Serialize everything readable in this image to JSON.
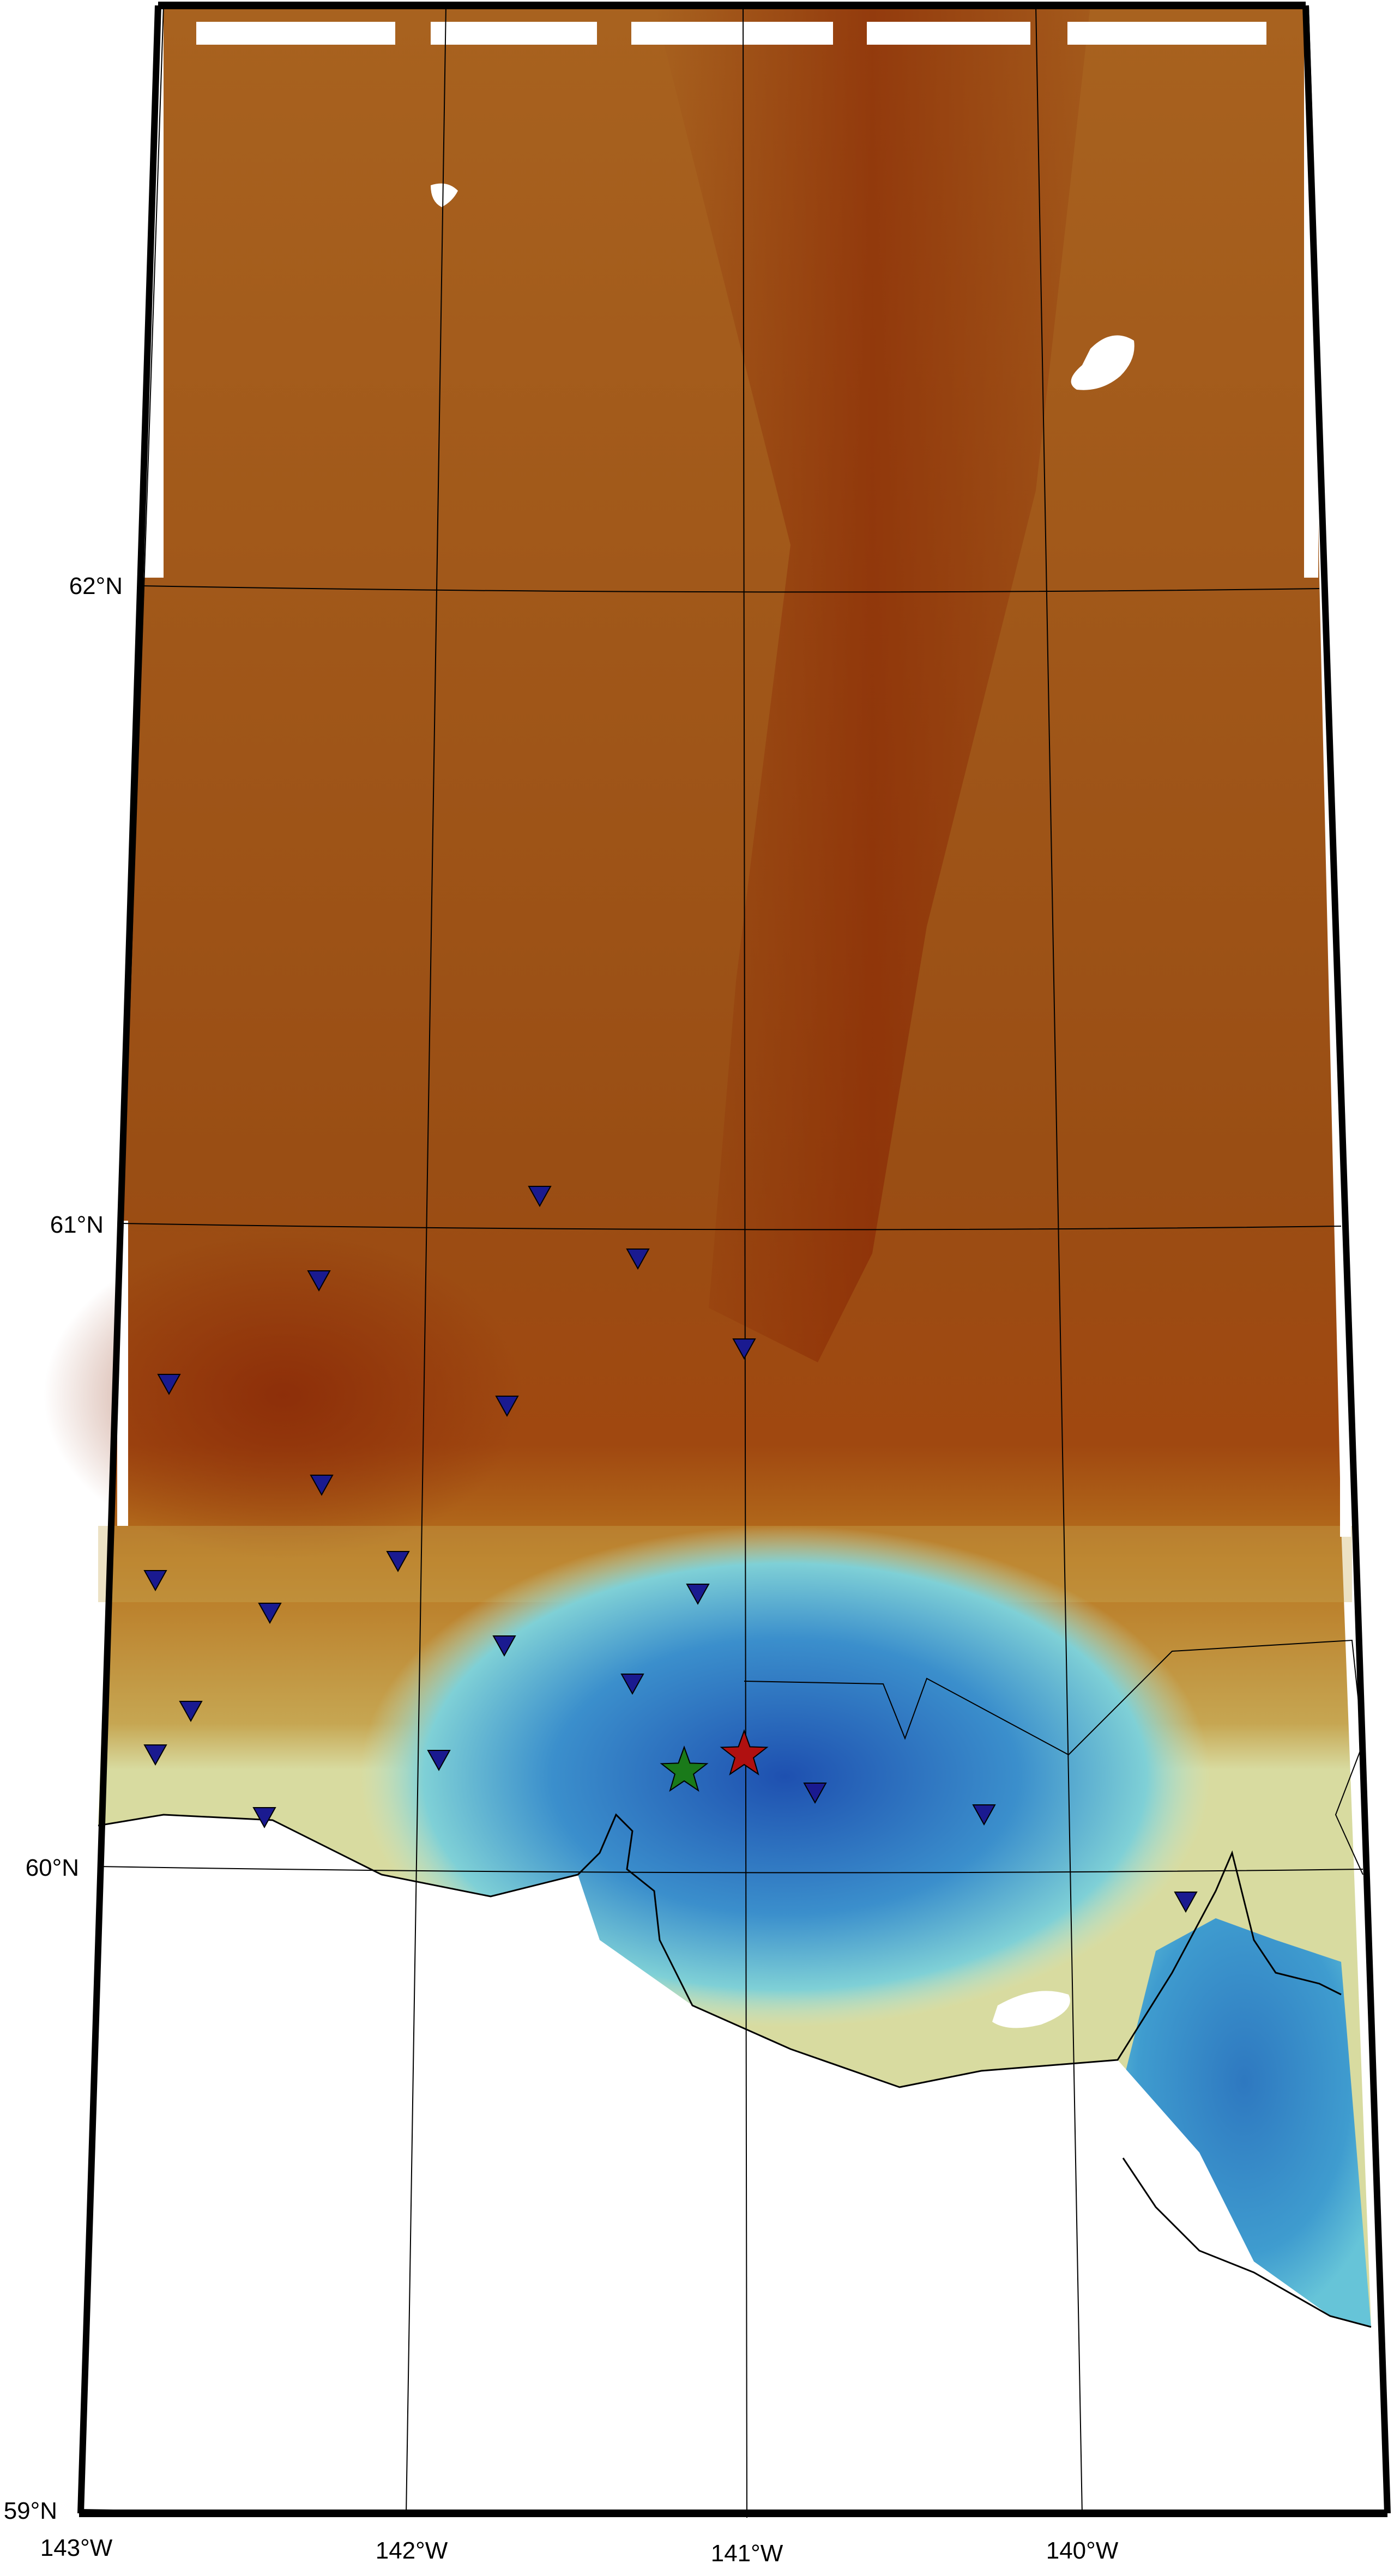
{
  "map": {
    "latitude_labels": [
      "62°N",
      "61°N",
      "60°N",
      "59°N"
    ],
    "longitude_labels": [
      "143°W",
      "142°W",
      "141°W",
      "140°W"
    ],
    "colors": {
      "high_terrain": "#8a2a05",
      "mid_terrain": "#b8721e",
      "low_terrain": "#c9ab55",
      "shallow": "#9fe0d4",
      "deep": "#2155b0",
      "station": "#1a1a90",
      "star_red": "#b01010",
      "star_green": "#1a7a1a"
    },
    "markers": {
      "stations": [
        {
          "name": "station"
        },
        {
          "name": "station"
        },
        {
          "name": "station"
        },
        {
          "name": "station"
        },
        {
          "name": "station"
        },
        {
          "name": "station"
        },
        {
          "name": "station"
        },
        {
          "name": "station"
        },
        {
          "name": "station"
        },
        {
          "name": "station"
        },
        {
          "name": "station"
        },
        {
          "name": "station"
        },
        {
          "name": "station"
        },
        {
          "name": "station"
        },
        {
          "name": "station"
        },
        {
          "name": "station"
        },
        {
          "name": "station"
        },
        {
          "name": "station"
        },
        {
          "name": "station"
        },
        {
          "name": "station"
        },
        {
          "name": "station"
        }
      ],
      "epicenter_symbols": [
        "red-star",
        "green-star"
      ]
    }
  }
}
